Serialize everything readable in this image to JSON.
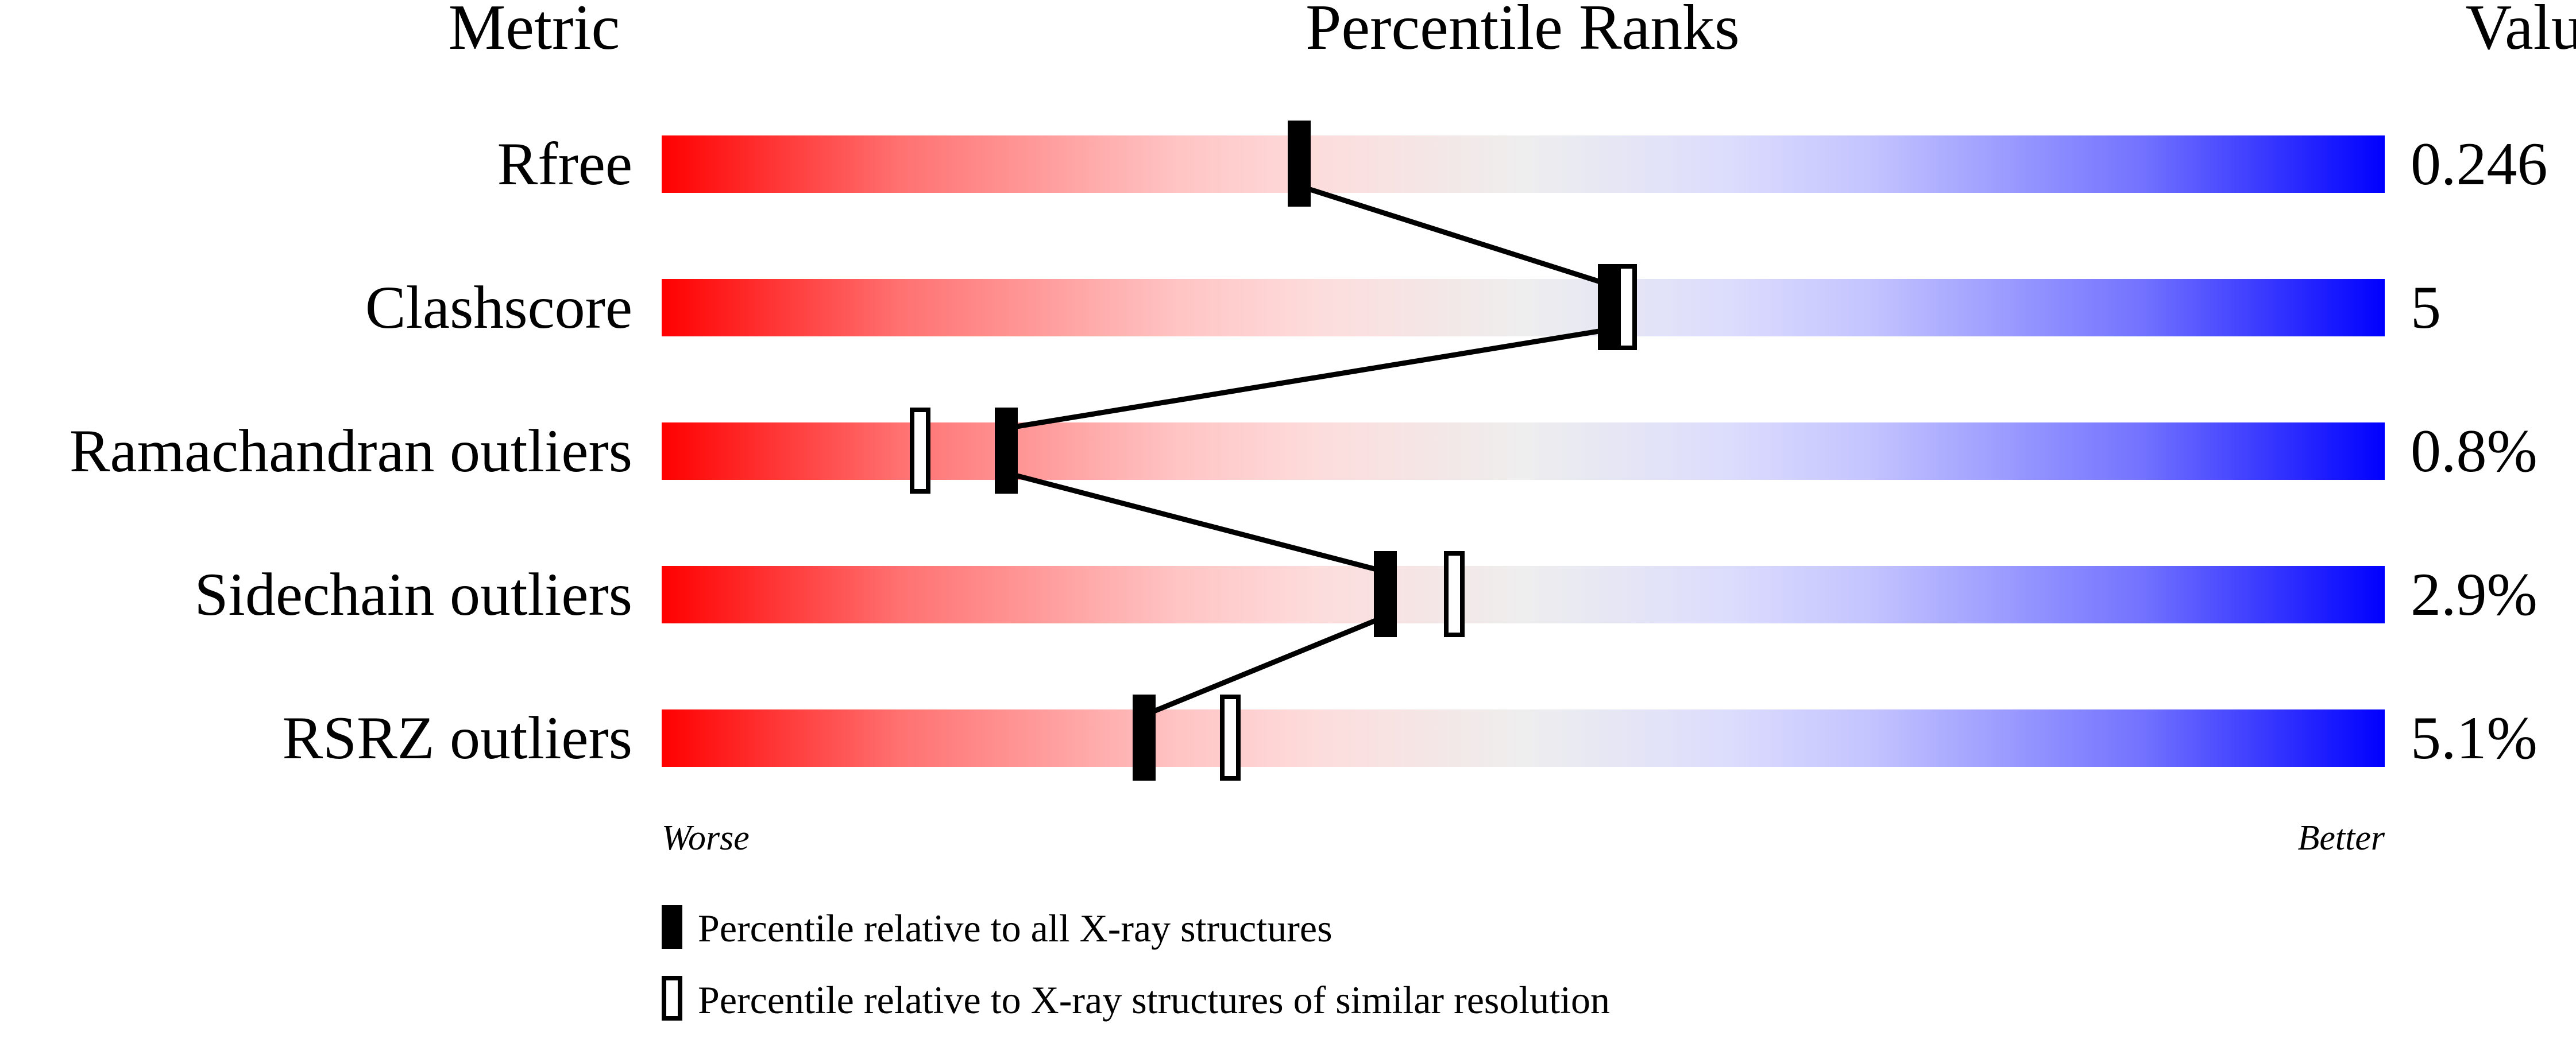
{
  "chart_data": {
    "type": "percentile-ranks",
    "headers": {
      "metric": "Metric",
      "ranks": "Percentile Ranks",
      "value": "Value"
    },
    "xlim": [
      0,
      100
    ],
    "gradient_colors": {
      "worse": "#ff0000",
      "middle": "#eeeeee",
      "better": "#0000ff"
    },
    "metrics": [
      {
        "name": "Rfree",
        "value": "0.246",
        "percentile_all": 37,
        "percentile_similar": null
      },
      {
        "name": "Clashscore",
        "value": "5",
        "percentile_all": 55,
        "percentile_similar": 56
      },
      {
        "name": "Ramachandran outliers",
        "value": "0.8%",
        "percentile_all": 20,
        "percentile_similar": 15
      },
      {
        "name": "Sidechain outliers",
        "value": "2.9%",
        "percentile_all": 42,
        "percentile_similar": 46
      },
      {
        "name": "RSRZ outliers",
        "value": "5.1%",
        "percentile_all": 28,
        "percentile_similar": 33
      }
    ],
    "axis_labels": {
      "left": "Worse",
      "right": "Better"
    },
    "legend": {
      "filled": "Percentile relative to all X-ray structures",
      "open": "Percentile relative to X-ray structures of similar resolution"
    }
  }
}
